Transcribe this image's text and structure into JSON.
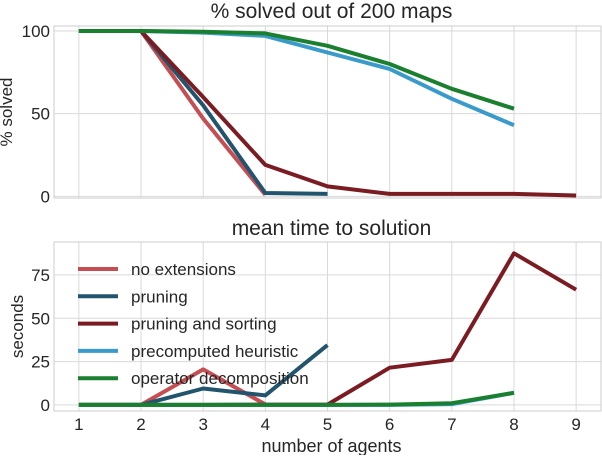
{
  "chart_data": [
    {
      "type": "line",
      "title": "% solved out of 200 maps",
      "xlabel": "",
      "ylabel": "% solved",
      "xlim": [
        0.6,
        9.4
      ],
      "ylim": [
        -1,
        103
      ],
      "yticks": [
        0,
        50,
        100
      ],
      "grid": true,
      "series": [
        {
          "name": "no extensions",
          "color": "#c44e52",
          "x": [
            1,
            2,
            3,
            4
          ],
          "values": [
            100,
            100,
            47,
            1
          ]
        },
        {
          "name": "pruning",
          "color": "#22546e",
          "x": [
            1,
            2,
            3,
            4,
            5
          ],
          "values": [
            100,
            100,
            55,
            2,
            1.5
          ]
        },
        {
          "name": "pruning and sorting",
          "color": "#7b1c23",
          "x": [
            1,
            2,
            3,
            4,
            5,
            6,
            7,
            8,
            9
          ],
          "values": [
            100,
            100,
            60,
            19,
            6,
            1.5,
            1.5,
            1.5,
            0.5
          ]
        },
        {
          "name": "precomputed heuristic",
          "color": "#3a9bcb",
          "x": [
            1,
            2,
            3,
            4,
            5,
            6,
            7,
            8
          ],
          "values": [
            100,
            100,
            99,
            97,
            87,
            77,
            59,
            43
          ]
        },
        {
          "name": "operator decomposition",
          "color": "#1a7f2e",
          "x": [
            1,
            2,
            3,
            4,
            5,
            6,
            7,
            8
          ],
          "values": [
            100,
            100,
            99.5,
            98.5,
            91,
            80,
            65,
            53
          ]
        }
      ]
    },
    {
      "type": "line",
      "title": "mean time to solution",
      "xlabel": "number of agents",
      "ylabel": "seconds",
      "xlim": [
        0.6,
        9.4
      ],
      "ylim": [
        -3.5,
        94
      ],
      "yticks": [
        0,
        25,
        50,
        75
      ],
      "xticks": [
        1,
        2,
        3,
        4,
        5,
        6,
        7,
        8,
        9
      ],
      "grid": true,
      "legend": "upper-left",
      "series": [
        {
          "name": "no extensions",
          "color": "#c44e52",
          "x": [
            1,
            2,
            3,
            4
          ],
          "values": [
            0,
            0,
            20.5,
            0.3
          ]
        },
        {
          "name": "pruning",
          "color": "#22546e",
          "x": [
            1,
            2,
            3,
            4,
            5
          ],
          "values": [
            0,
            0,
            9.5,
            5.5,
            34.5
          ]
        },
        {
          "name": "pruning and sorting",
          "color": "#7b1c23",
          "x": [
            1,
            2,
            3,
            4,
            5,
            6,
            7,
            8,
            9
          ],
          "values": [
            0,
            0,
            0,
            0.2,
            0.2,
            21.5,
            26,
            87.5,
            66.5
          ]
        },
        {
          "name": "precomputed heuristic",
          "color": "#3a9bcb",
          "x": [
            1,
            2,
            3,
            4,
            5,
            6,
            7,
            8
          ],
          "values": [
            0,
            0,
            0,
            0,
            0,
            0,
            0.5,
            7
          ]
        },
        {
          "name": "operator decomposition",
          "color": "#1a7f2e",
          "x": [
            1,
            2,
            3,
            4,
            5,
            6,
            7,
            8
          ],
          "values": [
            0,
            0,
            0,
            0,
            0,
            0.2,
            1,
            7
          ]
        }
      ]
    }
  ]
}
